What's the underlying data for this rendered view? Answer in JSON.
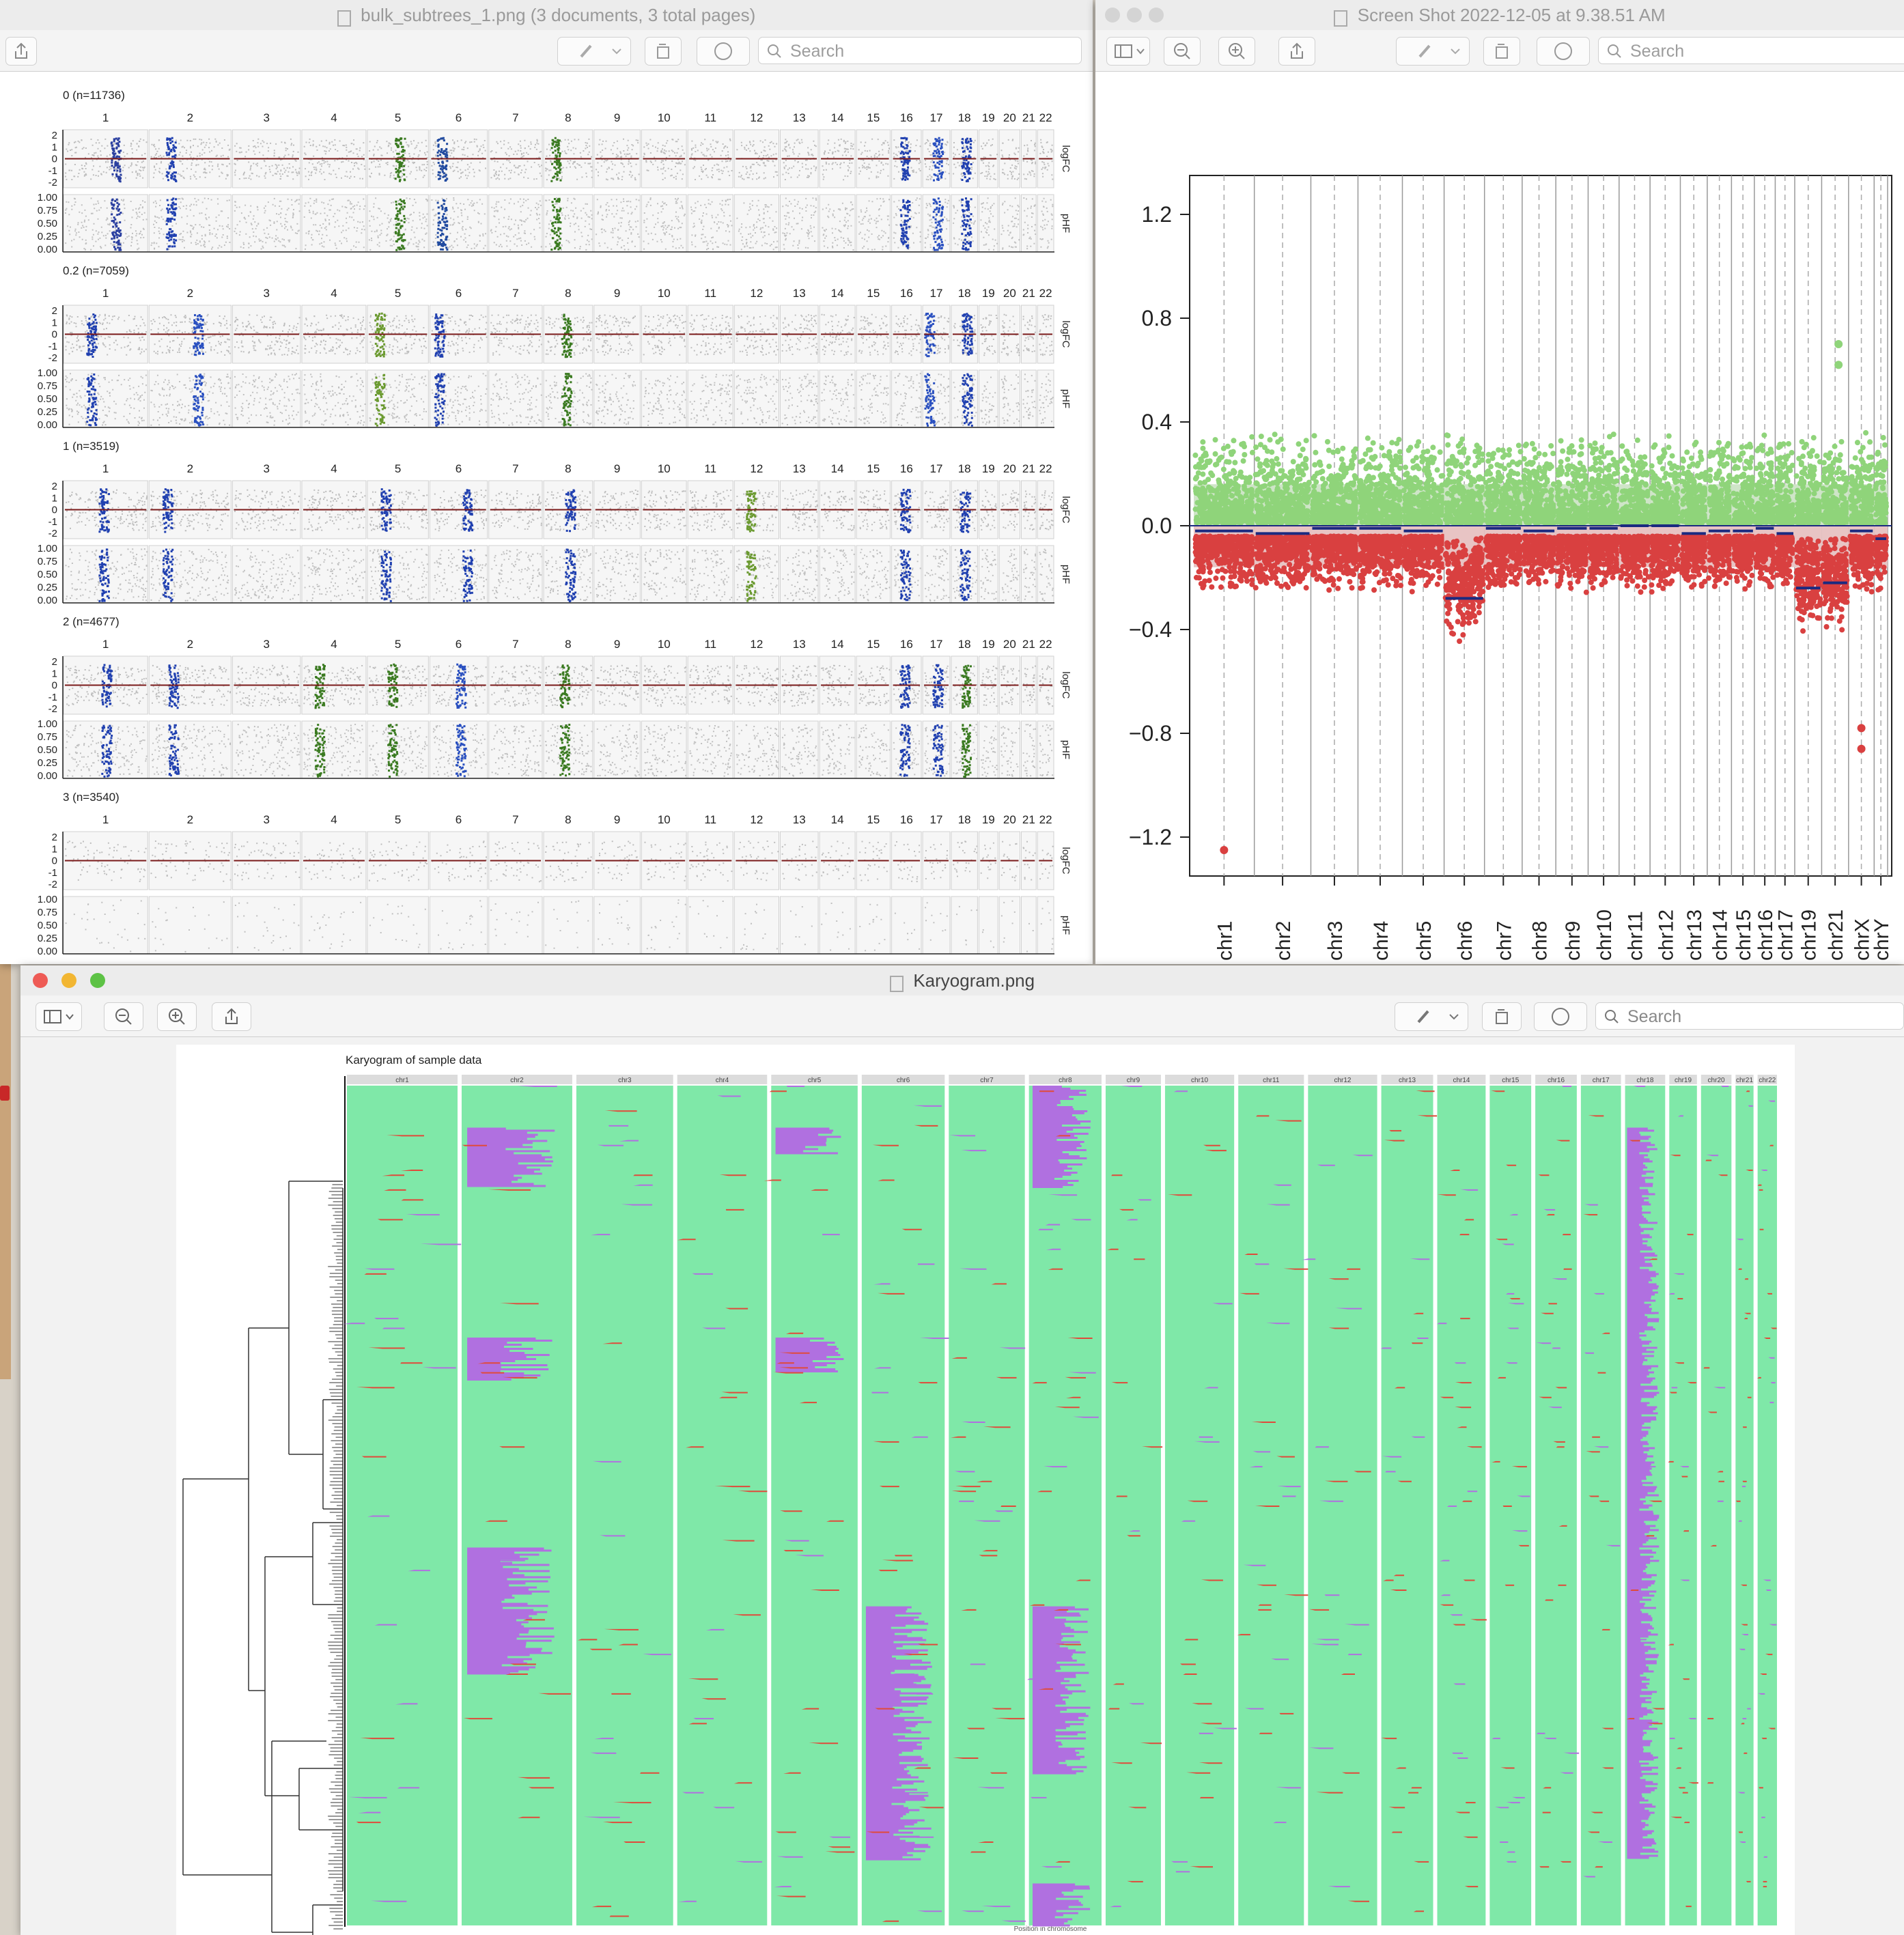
{
  "windows": {
    "subtrees": {
      "title": "bulk_subtrees_1.png (3 documents, 3 total pages)",
      "search_placeholder": "Search"
    },
    "cnv_plot": {
      "title": "Screen Shot 2022-12-05 at 9.38.51 AM",
      "search_placeholder": "Search"
    },
    "karyogram": {
      "title": "Karyogram.png",
      "search_placeholder": "Search"
    }
  },
  "chromosomes_numeric": [
    "1",
    "2",
    "3",
    "4",
    "5",
    "6",
    "7",
    "8",
    "9",
    "10",
    "11",
    "12",
    "13",
    "14",
    "15",
    "16",
    "17",
    "18",
    "19",
    "20",
    "21",
    "22"
  ],
  "subtree_panels": [
    {
      "label": "0 (n=11736)",
      "logfc_ticks": [
        "2",
        "1",
        "0",
        "-1",
        "-2"
      ],
      "phf_ticks": [
        "1.00",
        "0.75",
        "0.50",
        "0.25",
        "0.00"
      ],
      "logfc_axis": "logFC",
      "phf_axis": "pHF"
    },
    {
      "label": "0.2 (n=7059)",
      "logfc_ticks": [
        "2",
        "1",
        "0",
        "-1",
        "-2"
      ],
      "phf_ticks": [
        "1.00",
        "0.75",
        "0.50",
        "0.25",
        "0.00"
      ],
      "logfc_axis": "logFC",
      "phf_axis": "pHF"
    },
    {
      "label": "1 (n=3519)",
      "logfc_ticks": [
        "2",
        "1",
        "0",
        "-1",
        "-2"
      ],
      "phf_ticks": [
        "1.00",
        "0.75",
        "0.50",
        "0.25",
        "0.00"
      ],
      "logfc_axis": "logFC",
      "phf_axis": "pHF"
    },
    {
      "label": "2 (n=4677)",
      "logfc_ticks": [
        "2",
        "1",
        "0",
        "-1",
        "-2"
      ],
      "phf_ticks": [
        "1.00",
        "0.75",
        "0.50",
        "0.25",
        "0.00"
      ],
      "logfc_axis": "logFC",
      "phf_axis": "pHF"
    },
    {
      "label": "3 (n=3540)",
      "logfc_ticks": [
        "2",
        "1",
        "0",
        "-1",
        "-2"
      ],
      "phf_ticks": [
        "1.00",
        "0.75",
        "0.50",
        "0.25",
        "0.00"
      ],
      "logfc_axis": "logFC",
      "phf_axis": "pHF"
    }
  ],
  "chart_data": [
    {
      "type": "scatter",
      "title": "",
      "yticks": [
        "1.2",
        "0.8",
        "0.4",
        "0.0",
        "−0.4",
        "−0.8",
        "−1.2"
      ],
      "ylim": [
        -1.35,
        1.35
      ],
      "categories": [
        "chr1",
        "chr2",
        "chr3",
        "chr4",
        "chr5",
        "chr6",
        "chr7",
        "chr8",
        "chr9",
        "chr10",
        "chr11",
        "chr12",
        "chr13",
        "chr14",
        "chr15",
        "chr16",
        "chr17",
        "chr19",
        "chr21",
        "chrX",
        "chrY"
      ],
      "segment_means": [
        -0.02,
        -0.03,
        -0.01,
        -0.01,
        -0.02,
        -0.28,
        -0.01,
        -0.02,
        -0.01,
        -0.01,
        0.0,
        0.0,
        -0.03,
        -0.02,
        -0.02,
        -0.01,
        -0.03,
        -0.24,
        -0.22,
        -0.02,
        -0.05
      ],
      "outliers": [
        {
          "chr": "chr1",
          "y": -1.25
        },
        {
          "chr": "chrX",
          "y": -0.78
        },
        {
          "chr": "chrX",
          "y": -0.86
        },
        {
          "chr": "chr21",
          "y": 0.7
        },
        {
          "chr": "chr21",
          "y": 0.62
        }
      ],
      "colors": {
        "gain": "#8fd47a",
        "loss": "#d94040",
        "segment": "#1a2a80"
      }
    },
    {
      "type": "heatmap",
      "title": "Karyogram of sample data",
      "xlabel": "Position in chromosome",
      "categories": [
        "chr1",
        "chr2",
        "chr3",
        "chr4",
        "chr5",
        "chr6",
        "chr7",
        "chr8",
        "chr9",
        "chr10",
        "chr11",
        "chr12",
        "chr13",
        "chr14",
        "chr15",
        "chr16",
        "chr17",
        "chr18",
        "chr19",
        "chr20",
        "chr21",
        "chr22"
      ],
      "colors": {
        "neutral": "#7fe8a8",
        "gain": "#b070e0",
        "loss": "#e04a3a"
      }
    }
  ]
}
